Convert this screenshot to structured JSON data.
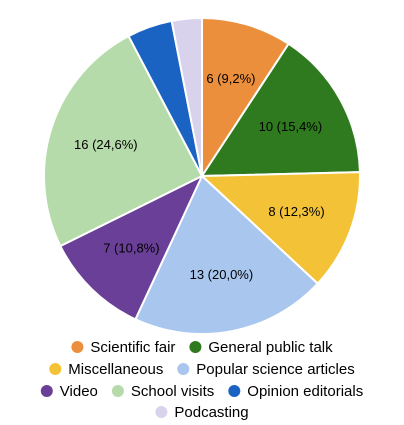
{
  "chart_data": {
    "type": "pie",
    "start_angle_deg": 0,
    "direction": "clockwise",
    "legend_position": "bottom",
    "slices": [
      {
        "name": "Scientific fair",
        "value": 6,
        "label": "6 (9,2%)",
        "color": "#ec8f3c",
        "show_label": true
      },
      {
        "name": "General public talk",
        "value": 10,
        "label": "10 (15,4%)",
        "color": "#2f7a1f",
        "show_label": true
      },
      {
        "name": "Miscellaneous",
        "value": 8,
        "label": "8 (12,3%)",
        "color": "#f3c236",
        "show_label": true
      },
      {
        "name": "Popular science articles",
        "value": 13,
        "label": "13 (20,0%)",
        "color": "#a8c6ee",
        "show_label": true
      },
      {
        "name": "Video",
        "value": 7,
        "label": "7 (10,8%)",
        "color": "#6a3f97",
        "show_label": true
      },
      {
        "name": "School visits",
        "value": 16,
        "label": "16 (24,6%)",
        "color": "#b6dbaa",
        "show_label": true
      },
      {
        "name": "Opinion editorials",
        "value": 3,
        "label": "",
        "color": "#1a63c3",
        "show_label": false
      },
      {
        "name": "Podcasting",
        "value": 2,
        "label": "",
        "color": "#d8d2ec",
        "show_label": false
      }
    ],
    "legend_rows": [
      [
        "Scientific fair",
        "General public talk"
      ],
      [
        "Miscellaneous",
        "Popular science articles"
      ],
      [
        "Video",
        "School visits",
        "Opinion editorials"
      ],
      [
        "Podcasting"
      ]
    ]
  }
}
